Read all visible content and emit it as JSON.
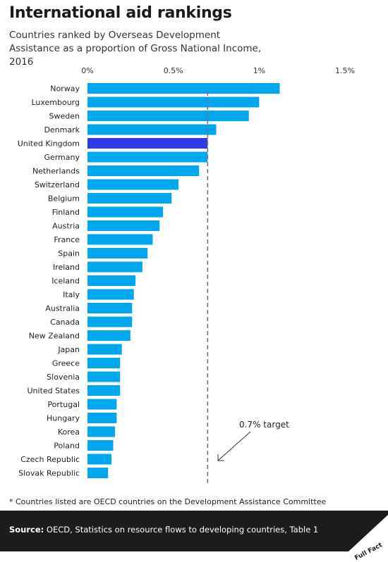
{
  "header": {
    "title": "International aid rankings",
    "subtitle": "Countries ranked by Overseas Development Assistance as a proportion of Gross National Income, 2016"
  },
  "colors": {
    "bar": "#00a7ee",
    "highlight": "#2f3ce6",
    "target_line": "#777777",
    "axis_text": "#333333"
  },
  "chart_data": {
    "type": "bar",
    "orientation": "horizontal",
    "title": "",
    "xlabel": "",
    "ylabel": "",
    "xlim": [
      0,
      1.5
    ],
    "x_ticks": [
      0,
      0.5,
      1,
      1.5
    ],
    "x_tick_labels": [
      "0%",
      "0.5%",
      "1%",
      "1.5%"
    ],
    "categories": [
      "Norway",
      "Luxembourg",
      "Sweden",
      "Denmark",
      "United Kingdom",
      "Germany",
      "Netherlands",
      "Switzerland",
      "Belgium",
      "Finland",
      "Austria",
      "France",
      "Spain",
      "Ireland",
      "Iceland",
      "Italy",
      "Australia",
      "Canada",
      "New Zealand",
      "Japan",
      "Greece",
      "Slovenia",
      "United States",
      "Portugal",
      "Hungary",
      "Korea",
      "Poland",
      "Czech Republic",
      "Slovak Republic"
    ],
    "values": [
      1.12,
      1.0,
      0.94,
      0.75,
      0.7,
      0.7,
      0.65,
      0.53,
      0.49,
      0.44,
      0.42,
      0.38,
      0.35,
      0.32,
      0.28,
      0.27,
      0.26,
      0.26,
      0.25,
      0.2,
      0.19,
      0.19,
      0.19,
      0.17,
      0.17,
      0.16,
      0.15,
      0.14,
      0.12
    ],
    "highlight": "United Kingdom",
    "reference_line": {
      "value": 0.7,
      "label": "0.7% target"
    },
    "grid": false
  },
  "footnote": "* Countries listed are OECD countries on the Development Assistance Committee",
  "source": {
    "label": "Source:",
    "text": " OECD, Statistics on resource flows to developing countries, Table 1"
  },
  "brand": {
    "name": "Full Fact"
  }
}
